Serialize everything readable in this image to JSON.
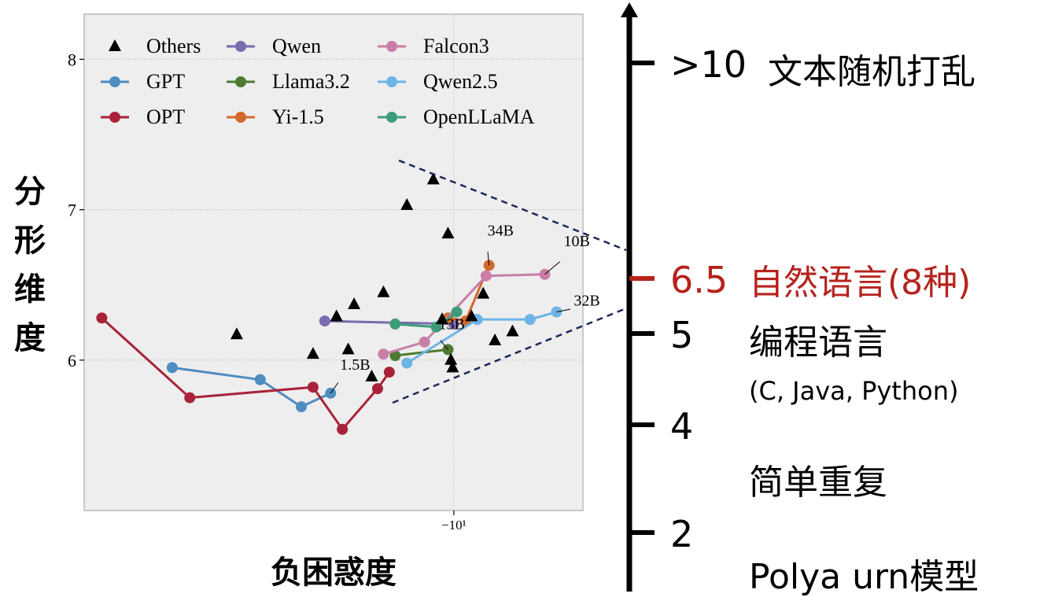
{
  "chart_data": {
    "type": "line",
    "xlabel": "负困惑度",
    "ylabel": "分形维度",
    "x_tick_labels": [
      "−10¹"
    ],
    "y_tick_labels": [
      "6",
      "7",
      "8"
    ],
    "ylim": [
      5.0,
      8.3
    ],
    "grid": true,
    "legend_position": "top-left",
    "legend": [
      "Others",
      "GPT",
      "OPT",
      "Qwen",
      "Llama3.2",
      "Yi-1.5",
      "Falcon3",
      "Qwen2.5",
      "OpenLLaMA"
    ],
    "series": [
      {
        "name": "GPT",
        "color": "#4f8cc0",
        "points": [
          [
            -13.8,
            5.95
          ],
          [
            -12.3,
            5.87
          ],
          [
            -11.6,
            5.69
          ],
          [
            -11.1,
            5.78
          ]
        ]
      },
      {
        "name": "OPT",
        "color": "#a8233a",
        "points": [
          [
            -15.0,
            6.28
          ],
          [
            -13.5,
            5.75
          ],
          [
            -11.4,
            5.82
          ],
          [
            -10.9,
            5.54
          ],
          [
            -10.3,
            5.81
          ],
          [
            -10.1,
            5.92
          ]
        ]
      },
      {
        "name": "Qwen",
        "color": "#7a6aae",
        "points": [
          [
            -11.2,
            6.26
          ],
          [
            -9.0,
            6.24
          ]
        ]
      },
      {
        "name": "Llama3.2",
        "color": "#4e7a30",
        "points": [
          [
            -10.0,
            6.03
          ],
          [
            -9.1,
            6.07
          ]
        ]
      },
      {
        "name": "Yi-1.5",
        "color": "#d2692a",
        "points": [
          [
            -9.1,
            6.28
          ],
          [
            -8.8,
            6.26
          ],
          [
            -8.4,
            6.63
          ]
        ]
      },
      {
        "name": "Falcon3",
        "color": "#c97ea8",
        "points": [
          [
            -10.2,
            6.04
          ],
          [
            -9.5,
            6.12
          ],
          [
            -8.45,
            6.56
          ],
          [
            -7.45,
            6.57
          ]
        ]
      },
      {
        "name": "Qwen2.5",
        "color": "#6db4e6",
        "points": [
          [
            -9.8,
            5.98
          ],
          [
            -8.6,
            6.27
          ],
          [
            -7.7,
            6.27
          ],
          [
            -7.25,
            6.32
          ]
        ]
      },
      {
        "name": "OpenLLaMA",
        "color": "#3e9c78",
        "points": [
          [
            -10.0,
            6.24
          ],
          [
            -9.3,
            6.22
          ],
          [
            -8.95,
            6.32
          ]
        ]
      },
      {
        "name": "Others",
        "color": "#000000",
        "marker": "triangle",
        "points": [
          [
            -12.7,
            6.17
          ],
          [
            -11.4,
            6.04
          ],
          [
            -11.0,
            6.29
          ],
          [
            -10.8,
            6.07
          ],
          [
            -10.7,
            6.37
          ],
          [
            -10.4,
            5.89
          ],
          [
            -10.2,
            6.45
          ],
          [
            -9.8,
            7.03
          ],
          [
            -9.35,
            7.2
          ],
          [
            -9.2,
            6.27
          ],
          [
            -9.1,
            6.84
          ],
          [
            -9.05,
            6.0
          ],
          [
            -9.02,
            5.95
          ],
          [
            -8.7,
            6.29
          ],
          [
            -8.5,
            6.44
          ],
          [
            -8.3,
            6.13
          ],
          [
            -8.0,
            6.19
          ]
        ]
      }
    ],
    "annotations": [
      {
        "text": "1.5B",
        "x": -11.1,
        "y": 5.78
      },
      {
        "text": "13B",
        "x": -9.1,
        "y": 6.07
      },
      {
        "text": "34B",
        "x": -8.4,
        "y": 6.63
      },
      {
        "text": "10B",
        "x": -7.45,
        "y": 6.57
      },
      {
        "text": "32B",
        "x": -7.25,
        "y": 6.32
      }
    ]
  },
  "scale": {
    "ticks": [
      {
        "value": ">10",
        "label": "文本随机打乱",
        "color": "#000000"
      },
      {
        "value": "6.5",
        "label": "自然语言(8种)",
        "color": "#b5231d"
      },
      {
        "value": "5",
        "label": "编程语言",
        "sub": "(C, Java, Python)",
        "color": "#000000"
      },
      {
        "value": "4",
        "label": "",
        "color": "#000000"
      },
      {
        "value": "2",
        "label": "",
        "color": "#000000"
      }
    ],
    "between_labels": [
      {
        "text": "简单重复"
      },
      {
        "text": "Polya urn模型"
      }
    ]
  }
}
